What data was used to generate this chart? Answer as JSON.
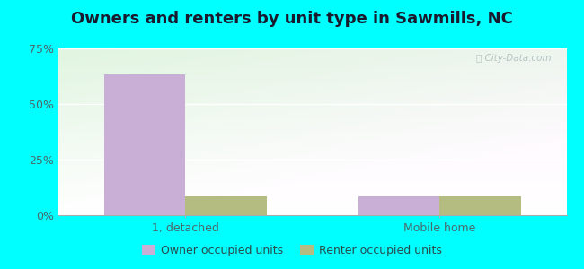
{
  "title": "Owners and renters by unit type in Sawmills, NC",
  "categories": [
    "1, detached",
    "Mobile home"
  ],
  "owner_values": [
    63.5,
    8.5
  ],
  "renter_values": [
    8.5,
    8.5
  ],
  "owner_color": "#c9aed6",
  "renter_color": "#b5bc82",
  "ylim": [
    0,
    75
  ],
  "yticks": [
    0,
    25,
    50,
    75
  ],
  "ytick_labels": [
    "0%",
    "25%",
    "50%",
    "75%"
  ],
  "bar_width": 0.32,
  "outer_bg": "#00ffff",
  "watermark": "ⓘ City-Data.com",
  "legend_owner": "Owner occupied units",
  "legend_renter": "Renter occupied units",
  "title_fontsize": 13,
  "axis_label_fontsize": 9,
  "legend_fontsize": 9
}
